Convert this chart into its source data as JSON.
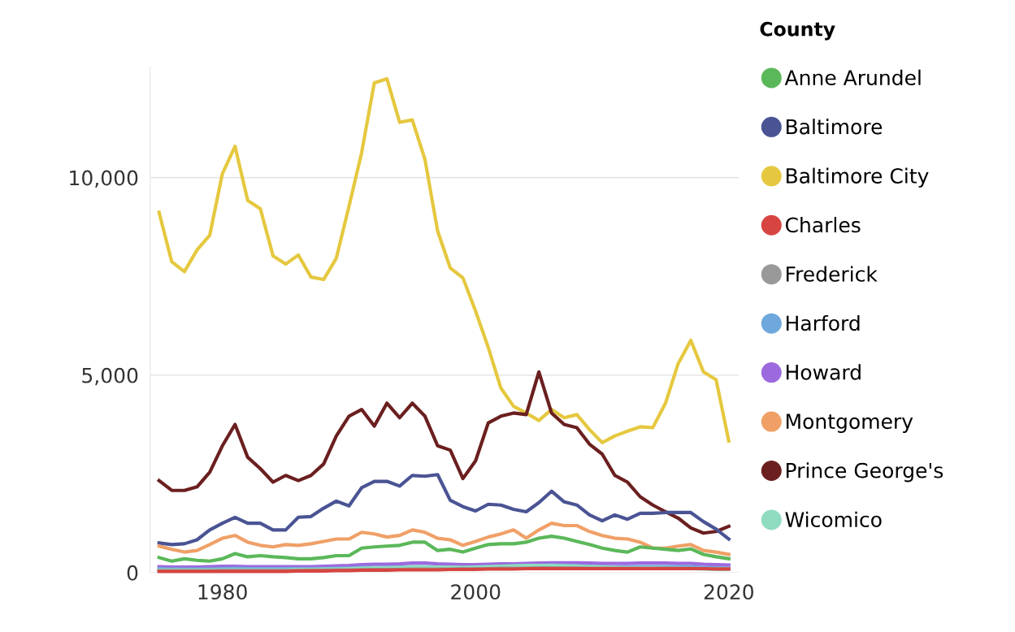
{
  "chart_data": {
    "type": "line",
    "legend_title": "County",
    "legend": "right",
    "grid": "y",
    "marker": "none",
    "line_style": "solid",
    "x": [
      1975,
      1976,
      1977,
      1978,
      1979,
      1980,
      1981,
      1982,
      1983,
      1984,
      1985,
      1986,
      1987,
      1988,
      1989,
      1990,
      1991,
      1992,
      1993,
      1994,
      1995,
      1996,
      1997,
      1998,
      1999,
      2000,
      2001,
      2002,
      2003,
      2004,
      2005,
      2006,
      2007,
      2008,
      2009,
      2010,
      2011,
      2012,
      2013,
      2014,
      2015,
      2016,
      2017,
      2018,
      2019,
      2020
    ],
    "xlim": [
      1974.3,
      2020.8
    ],
    "xticks": [
      1980,
      2000,
      2020
    ],
    "ylim": [
      0,
      12800
    ],
    "yticks": [
      0,
      {
        "value": 5000,
        "label": "5,000"
      },
      {
        "value": 10000,
        "label": "10,000"
      }
    ],
    "series": [
      {
        "name": "Anne Arundel",
        "color": "#5bb85a",
        "values": [
          380,
          290,
          350,
          310,
          290,
          350,
          480,
          400,
          430,
          400,
          380,
          350,
          350,
          380,
          430,
          430,
          620,
          650,
          670,
          690,
          770,
          770,
          560,
          590,
          520,
          620,
          710,
          730,
          730,
          770,
          870,
          920,
          870,
          790,
          710,
          620,
          560,
          520,
          650,
          620,
          590,
          560,
          600,
          460,
          400,
          350
        ]
      },
      {
        "name": "Baltimore",
        "color": "#4a5494",
        "values": [
          750,
          710,
          730,
          830,
          1080,
          1250,
          1400,
          1250,
          1250,
          1080,
          1080,
          1400,
          1420,
          1630,
          1810,
          1690,
          2150,
          2310,
          2310,
          2190,
          2460,
          2440,
          2480,
          1830,
          1670,
          1560,
          1730,
          1710,
          1600,
          1540,
          1770,
          2060,
          1790,
          1710,
          1460,
          1310,
          1460,
          1350,
          1500,
          1500,
          1520,
          1520,
          1520,
          1290,
          1100,
          850
        ]
      },
      {
        "name": "Baltimore City",
        "color": "#e5c83f",
        "values": [
          9120,
          7870,
          7620,
          8170,
          8540,
          10100,
          10790,
          9420,
          9210,
          8020,
          7810,
          8040,
          7480,
          7420,
          7960,
          9270,
          10630,
          12400,
          12500,
          11400,
          11460,
          10460,
          8650,
          7710,
          7460,
          6620,
          5700,
          4670,
          4210,
          4040,
          3850,
          4130,
          3920,
          4000,
          3620,
          3290,
          3460,
          3580,
          3690,
          3670,
          4290,
          5290,
          5880,
          5080,
          4880,
          3330
        ]
      },
      {
        "name": "Charles",
        "color": "#d64541",
        "values": [
          30,
          30,
          30,
          30,
          30,
          30,
          30,
          30,
          30,
          30,
          30,
          40,
          40,
          40,
          50,
          50,
          60,
          60,
          60,
          70,
          70,
          70,
          70,
          80,
          80,
          80,
          90,
          90,
          90,
          100,
          100,
          100,
          100,
          100,
          100,
          100,
          100,
          100,
          100,
          100,
          100,
          100,
          100,
          100,
          90,
          90
        ]
      },
      {
        "name": "Frederick",
        "color": "#999999",
        "values": [
          40,
          40,
          40,
          40,
          40,
          50,
          50,
          50,
          50,
          50,
          50,
          50,
          60,
          60,
          60,
          70,
          70,
          80,
          80,
          80,
          90,
          90,
          90,
          90,
          100,
          100,
          100,
          110,
          110,
          110,
          120,
          120,
          120,
          120,
          110,
          110,
          110,
          110,
          110,
          110,
          110,
          110,
          110,
          100,
          100,
          100
        ]
      },
      {
        "name": "Harford",
        "color": "#6fa8dc",
        "values": [
          100,
          90,
          90,
          90,
          90,
          100,
          110,
          100,
          100,
          100,
          100,
          100,
          100,
          100,
          110,
          110,
          130,
          130,
          130,
          140,
          150,
          150,
          140,
          140,
          130,
          140,
          150,
          160,
          170,
          170,
          180,
          190,
          180,
          170,
          160,
          150,
          140,
          140,
          150,
          150,
          150,
          150,
          150,
          130,
          120,
          110
        ]
      },
      {
        "name": "Howard",
        "color": "#9c6ade",
        "values": [
          150,
          140,
          140,
          140,
          150,
          160,
          160,
          150,
          150,
          150,
          150,
          150,
          150,
          160,
          170,
          180,
          200,
          210,
          210,
          220,
          240,
          240,
          220,
          210,
          200,
          200,
          210,
          220,
          220,
          230,
          240,
          250,
          250,
          250,
          240,
          230,
          230,
          230,
          240,
          240,
          240,
          230,
          230,
          210,
          200,
          190
        ]
      },
      {
        "name": "Montgomery",
        "color": "#f0a067",
        "values": [
          670,
          590,
          520,
          560,
          710,
          870,
          940,
          770,
          690,
          650,
          710,
          690,
          730,
          790,
          850,
          850,
          1020,
          980,
          900,
          940,
          1080,
          1020,
          870,
          830,
          690,
          790,
          900,
          980,
          1080,
          870,
          1080,
          1250,
          1190,
          1190,
          1040,
          940,
          870,
          850,
          770,
          620,
          620,
          670,
          710,
          560,
          520,
          460
        ]
      },
      {
        "name": "Prince George's",
        "color": "#6b1f1f",
        "values": [
          2330,
          2080,
          2080,
          2170,
          2540,
          3210,
          3750,
          2920,
          2630,
          2290,
          2460,
          2330,
          2460,
          2750,
          3460,
          3960,
          4130,
          3710,
          4290,
          3920,
          4290,
          3960,
          3210,
          3100,
          2380,
          2830,
          3790,
          3960,
          4040,
          4000,
          5080,
          4040,
          3750,
          3670,
          3250,
          3000,
          2460,
          2290,
          1920,
          1710,
          1540,
          1380,
          1130,
          1000,
          1040,
          1170
        ]
      },
      {
        "name": "Wicomico",
        "color": "#8fdcc0",
        "values": [
          60,
          60,
          60,
          60,
          60,
          70,
          70,
          70,
          70,
          70,
          70,
          80,
          80,
          90,
          90,
          100,
          110,
          120,
          120,
          130,
          140,
          140,
          140,
          140,
          130,
          140,
          150,
          160,
          170,
          180,
          180,
          180,
          170,
          160,
          150,
          140,
          130,
          120,
          120,
          120,
          110,
          110,
          100,
          90,
          80,
          80
        ]
      }
    ]
  }
}
